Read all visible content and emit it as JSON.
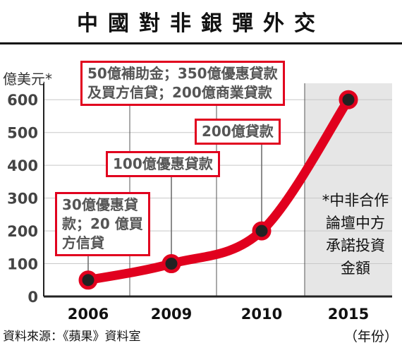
{
  "header": {
    "title": "中國對非銀彈外交",
    "unit": "億美元*"
  },
  "chart_data": {
    "type": "line",
    "title": "中國對非銀彈外交",
    "ylabel": "億美元*",
    "xlabel": "（年份）",
    "categories": [
      "2006",
      "2009",
      "2010",
      "2015"
    ],
    "values": [
      50,
      100,
      200,
      600
    ],
    "ylim": [
      0,
      650
    ],
    "yticks": [
      0,
      100,
      200,
      300,
      400,
      500,
      600
    ],
    "grid": true,
    "colors": {
      "line": "#e1001e",
      "marker": "#222222",
      "callout_border": "#e1001e",
      "shade": "#e6e6e6"
    },
    "callouts": [
      {
        "lines": [
          "30億優惠貸",
          "款；20 億買",
          "方信貸"
        ]
      },
      {
        "lines": [
          "100億優惠貸款"
        ]
      },
      {
        "lines": [
          "200億貸款"
        ]
      },
      {
        "lines": [
          "50億補助金；350億優惠貸款",
          "及買方信貸；200億商業貸款"
        ]
      }
    ],
    "note_lines": [
      "*中非合作",
      "論壇中方",
      "承諾投資",
      "金額"
    ]
  },
  "footer": {
    "source": "資料來源：《蘋果》資料室",
    "x_unit": "（年份）"
  }
}
